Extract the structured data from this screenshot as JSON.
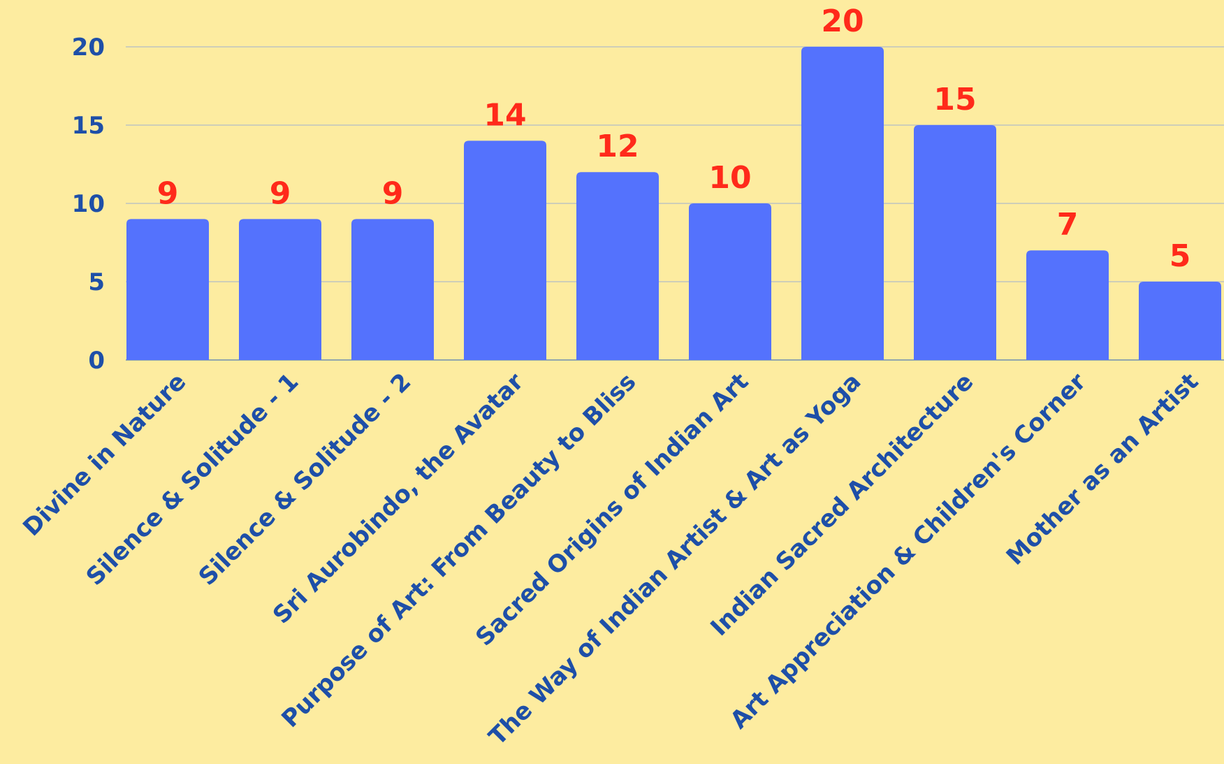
{
  "chart_data": {
    "type": "bar",
    "title": "",
    "xlabel": "",
    "ylabel": "",
    "categories": [
      "Divine in Nature",
      "Silence & Solitude - 1",
      "Silence & Solitude - 2",
      "Sri Aurobindo, the Avatar",
      "Purpose of Art: From Beauty to Bliss",
      "Sacred Origins of Indian Art",
      "The Way of Indian Artist & Art as Yoga",
      "Indian Sacred Architecture",
      "Art Appreciation & Children's Corner",
      "Mother as an Artist"
    ],
    "values": [
      9,
      9,
      9,
      14,
      12,
      10,
      20,
      15,
      7,
      5
    ],
    "yticks": [
      0,
      5,
      10,
      15,
      20
    ],
    "ylim": [
      0,
      20
    ],
    "grid": true,
    "legend": "none",
    "data_labels": true
  },
  "colors": {
    "background": "#fdeca0",
    "bar": "#5472fd",
    "data_label": "#ff2a1a",
    "axis_text": "#1e4fa8",
    "gridline": "#bfc3c0"
  }
}
